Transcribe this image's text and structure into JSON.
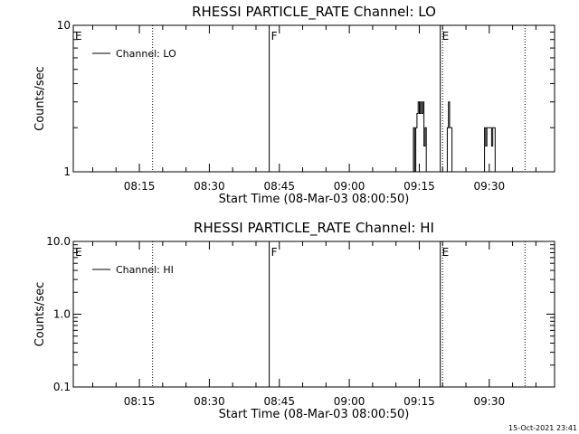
{
  "chart_data": [
    {
      "type": "line",
      "title": "RHESSI PARTICLE_RATE Channel: LO",
      "xlabel": "Start Time (08-Mar-03 08:00:50)",
      "ylabel": "Counts/sec",
      "yscale": "log",
      "ylim": [
        1,
        10
      ],
      "ytick_labels": [
        {
          "v": 1,
          "label": "1"
        },
        {
          "v": 10,
          "label": "10"
        }
      ],
      "xlim": [
        "08:00:50",
        "09:44:00"
      ],
      "xtick_labels": [
        "08:15",
        "08:30",
        "08:45",
        "09:00",
        "09:15",
        "09:30"
      ],
      "grid": false,
      "legend": "top-left",
      "series": [
        {
          "name": "Channel: LO",
          "points": [
            [
              "09:13:30",
              1
            ],
            [
              "09:13:45",
              2
            ],
            [
              "09:14:00",
              1
            ],
            [
              "09:14:15",
              2
            ],
            [
              "09:14:30",
              2.5
            ],
            [
              "09:14:45",
              3
            ],
            [
              "09:15:00",
              2.5
            ],
            [
              "09:15:15",
              3
            ],
            [
              "09:15:30",
              2.5
            ],
            [
              "09:15:45",
              3
            ],
            [
              "09:16:00",
              1.5
            ],
            [
              "09:16:15",
              2
            ],
            [
              "09:16:30",
              1
            ],
            [
              "09:20:45",
              1
            ],
            [
              "09:21:00",
              2
            ],
            [
              "09:21:15",
              3
            ],
            [
              "09:21:30",
              2
            ],
            [
              "09:21:45",
              2
            ],
            [
              "09:22:00",
              1
            ],
            [
              "09:28:45",
              1
            ],
            [
              "09:29:00",
              2
            ],
            [
              "09:29:15",
              1.5
            ],
            [
              "09:29:30",
              2
            ],
            [
              "09:29:45",
              2
            ],
            [
              "09:30:00",
              2
            ],
            [
              "09:30:15",
              2
            ],
            [
              "09:30:30",
              1.5
            ],
            [
              "09:30:45",
              2
            ],
            [
              "09:31:00",
              2
            ],
            [
              "09:31:15",
              1
            ]
          ]
        }
      ],
      "annotations": [
        {
          "label": "E",
          "time": "08:00:50",
          "style": "solid"
        },
        {
          "time": "08:17:50",
          "style": "dotted"
        },
        {
          "label": "F",
          "time": "08:42:50",
          "style": "solid"
        },
        {
          "label": "E",
          "time": "09:19:30",
          "style": "solid"
        },
        {
          "time": "09:20:00",
          "style": "dotted"
        },
        {
          "time": "09:37:40",
          "style": "dotted"
        }
      ]
    },
    {
      "type": "line",
      "title": "RHESSI PARTICLE_RATE Channel: HI",
      "xlabel": "Start Time (08-Mar-03 08:00:50)",
      "ylabel": "Counts/sec",
      "yscale": "log",
      "ylim": [
        0.1,
        10
      ],
      "ytick_labels": [
        {
          "v": 0.1,
          "label": "0.1"
        },
        {
          "v": 1,
          "label": "1.0"
        },
        {
          "v": 10,
          "label": "10.0"
        }
      ],
      "xlim": [
        "08:00:50",
        "09:44:00"
      ],
      "xtick_labels": [
        "08:15",
        "08:30",
        "08:45",
        "09:00",
        "09:15",
        "09:30"
      ],
      "grid": false,
      "legend": "top-left",
      "series": [
        {
          "name": "Channel: HI",
          "points": []
        }
      ],
      "annotations": [
        {
          "label": "E",
          "time": "08:00:50",
          "style": "solid"
        },
        {
          "time": "08:17:50",
          "style": "dotted"
        },
        {
          "label": "F",
          "time": "08:42:50",
          "style": "solid"
        },
        {
          "label": "E",
          "time": "09:19:30",
          "style": "solid"
        },
        {
          "time": "09:20:00",
          "style": "dotted"
        },
        {
          "time": "09:37:40",
          "style": "dotted"
        }
      ]
    }
  ],
  "footer": {
    "timestamp": "15-Oct-2021 23:41"
  }
}
